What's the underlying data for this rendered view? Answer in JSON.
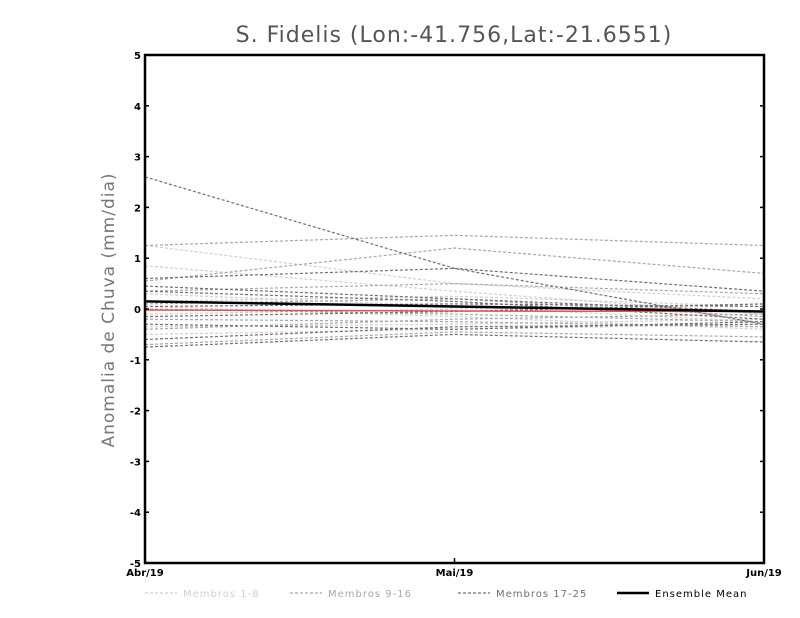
{
  "chart_data": {
    "type": "line",
    "title": "S. Fidelis (Lon:-41.756,Lat:-21.6551)",
    "xlabel": "",
    "ylabel": "Anomalia de Chuva (mm/dia)",
    "categories": [
      "Abr/19",
      "Mai/19",
      "Jun/19"
    ],
    "ylim": [
      -5,
      5
    ],
    "yticks": [
      -5,
      -4,
      -3,
      -2,
      -1,
      0,
      1,
      2,
      3,
      4,
      5
    ],
    "grid": false,
    "legend_position": "bottom",
    "legend": [
      {
        "label": "Membros 1-8",
        "color": "#d0d0d0",
        "style": "dashed"
      },
      {
        "label": "Membros 9-16",
        "color": "#a8a8a8",
        "style": "dashed"
      },
      {
        "label": "Membros 17-25",
        "color": "#707070",
        "style": "dashed"
      },
      {
        "label": "Ensemble Mean",
        "color": "#000000",
        "style": "solid"
      }
    ],
    "series": [
      {
        "group": "m1",
        "values": [
          1.25,
          0.5,
          0.2
        ]
      },
      {
        "group": "m1",
        "values": [
          0.85,
          0.35,
          -0.1
        ]
      },
      {
        "group": "m1",
        "values": [
          0.3,
          0.05,
          -0.25
        ]
      },
      {
        "group": "m1",
        "values": [
          0.15,
          0.25,
          0.05
        ]
      },
      {
        "group": "m1",
        "values": [
          -0.1,
          0.0,
          0.1
        ]
      },
      {
        "group": "m1",
        "values": [
          -0.35,
          -0.3,
          -0.2
        ]
      },
      {
        "group": "m1",
        "values": [
          -0.5,
          -0.4,
          -0.3
        ]
      },
      {
        "group": "m1",
        "values": [
          0.05,
          -0.15,
          -0.4
        ]
      },
      {
        "group": "m2",
        "values": [
          1.25,
          1.45,
          1.25
        ]
      },
      {
        "group": "m2",
        "values": [
          0.55,
          1.2,
          0.7
        ]
      },
      {
        "group": "m2",
        "values": [
          0.35,
          0.5,
          0.3
        ]
      },
      {
        "group": "m2",
        "values": [
          0.1,
          0.2,
          -0.15
        ]
      },
      {
        "group": "m2",
        "values": [
          -0.2,
          -0.25,
          -0.35
        ]
      },
      {
        "group": "m2",
        "values": [
          -0.4,
          -0.2,
          -0.1
        ]
      },
      {
        "group": "m2",
        "values": [
          -0.7,
          -0.45,
          -0.55
        ]
      },
      {
        "group": "m2",
        "values": [
          0.0,
          -0.1,
          -0.25
        ]
      },
      {
        "group": "m3",
        "values": [
          2.6,
          0.8,
          -0.3
        ]
      },
      {
        "group": "m3",
        "values": [
          0.6,
          0.8,
          0.35
        ]
      },
      {
        "group": "m3",
        "values": [
          0.35,
          0.15,
          -0.2
        ]
      },
      {
        "group": "m3",
        "values": [
          -0.75,
          -0.5,
          -0.65
        ]
      },
      {
        "group": "m3",
        "values": [
          -0.6,
          -0.35,
          -0.3
        ]
      },
      {
        "group": "m3",
        "values": [
          -0.3,
          -0.4,
          -0.25
        ]
      },
      {
        "group": "m3",
        "values": [
          0.05,
          0.1,
          0.05
        ]
      },
      {
        "group": "m3",
        "values": [
          -0.15,
          -0.05,
          0.1
        ]
      },
      {
        "group": "m3",
        "values": [
          0.45,
          0.2,
          -0.05
        ]
      },
      {
        "group": "red",
        "color": "#e05050",
        "values": [
          -0.02,
          -0.04,
          -0.05
        ]
      },
      {
        "group": "mean",
        "values": [
          0.15,
          0.05,
          -0.05
        ]
      }
    ]
  }
}
